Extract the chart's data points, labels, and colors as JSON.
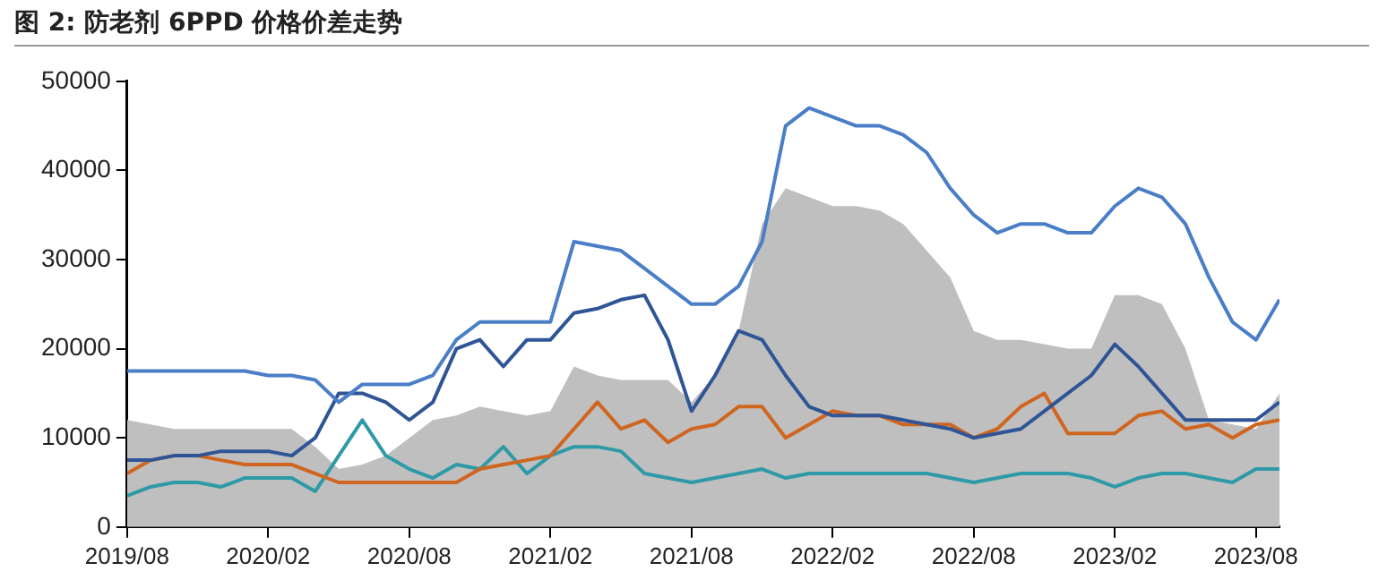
{
  "chart_data": {
    "type": "line",
    "title": "图 2:  防老剂 6PPD 价格价差走势",
    "x": [
      "2019-08",
      "2019-09",
      "2019-10",
      "2019-11",
      "2019-12",
      "2020-01",
      "2020-02",
      "2020-03",
      "2020-04",
      "2020-05",
      "2020-06",
      "2020-07",
      "2020-08",
      "2020-09",
      "2020-10",
      "2020-11",
      "2020-12",
      "2021-01",
      "2021-02",
      "2021-03",
      "2021-04",
      "2021-05",
      "2021-06",
      "2021-07",
      "2021-08",
      "2021-09",
      "2021-10",
      "2021-11",
      "2021-12",
      "2022-01",
      "2022-02",
      "2022-03",
      "2022-04",
      "2022-05",
      "2022-06",
      "2022-07",
      "2022-08",
      "2022-09",
      "2022-10",
      "2022-11",
      "2022-12",
      "2023-01",
      "2023-02",
      "2023-03",
      "2023-04",
      "2023-05",
      "2023-06",
      "2023-07",
      "2023-08",
      "2023-09"
    ],
    "series": [
      {
        "type": "area",
        "color": "#bfbfbf",
        "values": [
          12000,
          11500,
          11000,
          11000,
          11000,
          11000,
          11000,
          11000,
          9000,
          6500,
          7000,
          8000,
          10000,
          12000,
          12500,
          13500,
          13000,
          12500,
          13000,
          18000,
          17000,
          16500,
          16500,
          16500,
          14000,
          17000,
          22000,
          34000,
          38000,
          37000,
          36000,
          36000,
          35500,
          34000,
          31000,
          28000,
          22000,
          21000,
          21000,
          20500,
          20000,
          20000,
          26000,
          26000,
          25000,
          20000,
          12000,
          11500,
          11000,
          15000
        ]
      },
      {
        "color": "#4a7ec7",
        "values": [
          17500,
          17500,
          17500,
          17500,
          17500,
          17500,
          17000,
          17000,
          16500,
          14000,
          16000,
          16000,
          16000,
          17000,
          21000,
          23000,
          23000,
          23000,
          23000,
          32000,
          31500,
          31000,
          29000,
          27000,
          25000,
          25000,
          27000,
          32000,
          45000,
          47000,
          46000,
          45000,
          45000,
          44000,
          42000,
          38000,
          35000,
          33000,
          34000,
          34000,
          33000,
          33000,
          36000,
          38000,
          37000,
          34000,
          28000,
          23000,
          21000,
          25500
        ]
      },
      {
        "color": "#2f5597",
        "values": [
          7500,
          7500,
          8000,
          8000,
          8500,
          8500,
          8500,
          8000,
          10000,
          15000,
          15000,
          14000,
          12000,
          14000,
          20000,
          21000,
          18000,
          21000,
          21000,
          24000,
          24500,
          25500,
          26000,
          21000,
          13000,
          17000,
          22000,
          21000,
          17000,
          13500,
          12500,
          12500,
          12500,
          12000,
          11500,
          11000,
          10000,
          10500,
          11000,
          13000,
          15000,
          17000,
          20500,
          18000,
          15000,
          12000,
          12000,
          12000,
          12000,
          14000
        ]
      },
      {
        "color": "#d0651f",
        "values": [
          6000,
          7500,
          8000,
          8000,
          7500,
          7000,
          7000,
          7000,
          6000,
          5000,
          5000,
          5000,
          5000,
          5000,
          5000,
          6500,
          7000,
          7500,
          8000,
          11000,
          14000,
          11000,
          12000,
          9500,
          11000,
          11500,
          13500,
          13500,
          10000,
          11500,
          13000,
          12500,
          12500,
          11500,
          11500,
          11500,
          10000,
          11000,
          13500,
          15000,
          10500,
          10500,
          10500,
          12500,
          13000,
          11000,
          11500,
          10000,
          11500,
          12000
        ]
      },
      {
        "color": "#2f9aa7",
        "values": [
          3500,
          4500,
          5000,
          5000,
          4500,
          5500,
          5500,
          5500,
          4000,
          8000,
          12000,
          8000,
          6500,
          5500,
          7000,
          6500,
          9000,
          6000,
          8000,
          9000,
          9000,
          8500,
          6000,
          5500,
          5000,
          5500,
          6000,
          6500,
          5500,
          6000,
          6000,
          6000,
          6000,
          6000,
          6000,
          5500,
          5000,
          5500,
          6000,
          6000,
          6000,
          5500,
          4500,
          5500,
          6000,
          6000,
          5500,
          5000,
          6500,
          6500
        ]
      }
    ],
    "xlim": [
      "2019-08",
      "2023-09"
    ],
    "xticks": [
      {
        "value": "2019-08",
        "label": "2019/08"
      },
      {
        "value": "2020-02",
        "label": "2020/02"
      },
      {
        "value": "2020-08",
        "label": "2020/08"
      },
      {
        "value": "2021-02",
        "label": "2021/02"
      },
      {
        "value": "2021-08",
        "label": "2021/08"
      },
      {
        "value": "2022-02",
        "label": "2022/02"
      },
      {
        "value": "2022-08",
        "label": "2022/08"
      },
      {
        "value": "2023-02",
        "label": "2023/02"
      },
      {
        "value": "2023-08",
        "label": "2023/08"
      }
    ],
    "ylim": [
      0,
      50000
    ],
    "yticks": [
      0,
      10000,
      20000,
      30000,
      40000,
      50000
    ],
    "grid": false,
    "legend": false
  }
}
